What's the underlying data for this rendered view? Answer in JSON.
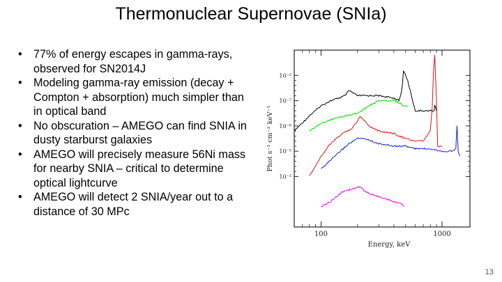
{
  "slide": {
    "title": "Thermonuclear Supernovae (SNIa)",
    "page_number": "13",
    "bullets": [
      "77% of energy escapes in gamma-rays, observed for SN2014J",
      "Modeling gamma-ray emission (decay + Compton + absorption) much simpler than in optical band",
      "No obscuration – AMEGO can find SNIA in dusty starburst galaxies",
      "AMEGO will precisely measure 56Ni mass for nearby SNIA – critical to determine optical lightcurve",
      "AMEGO will detect 2 SNIA/year out to a distance of 30 MPc"
    ]
  },
  "chart_data": {
    "type": "line",
    "xlabel": "Energy, keV",
    "ylabel": "Phot s⁻¹ cm⁻² keV⁻¹",
    "xscale": "log",
    "yscale": "log",
    "xlim": [
      60,
      1700
    ],
    "ylim": [
      0.0008,
      0.0015
    ],
    "x_ticks": [
      {
        "value": 100,
        "label": "100"
      },
      {
        "value": 1000,
        "label": "1000"
      }
    ],
    "y_ticks": [
      {
        "value": 0.001,
        "label": "10⁻³"
      },
      {
        "value": 0.0011,
        "label": "10⁻⁵"
      },
      {
        "value": 0.0012,
        "label": "10⁻⁶"
      },
      {
        "value": 0.0013,
        "label": "10⁻⁷"
      },
      {
        "value": 0.0014,
        "label": "10⁻⁵"
      }
    ],
    "series": [
      {
        "color": "#000000",
        "x": [
          60,
          80,
          100,
          120,
          140,
          158,
          170,
          200,
          250,
          300,
          400,
          440,
          455,
          470,
          480,
          520,
          600,
          700,
          800,
          860,
          870,
          880,
          900
        ],
        "y": [
          0.00118,
          0.00124,
          0.00128,
          0.0013,
          0.00131,
          0.00132,
          0.00134,
          0.00132,
          0.00132,
          0.00132,
          0.00131,
          0.0013,
          0.00132,
          0.00136,
          0.00142,
          0.00138,
          0.00126,
          0.00126,
          0.00126,
          0.00126,
          0.00128,
          0.00128,
          0.00126
        ]
      },
      {
        "color": "#00dd00",
        "x": [
          80,
          100,
          130,
          160,
          200,
          250,
          300,
          350,
          400,
          450,
          480,
          520
        ],
        "y": [
          0.00118,
          0.00121,
          0.00123,
          0.00124,
          0.00125,
          0.00128,
          0.0013,
          0.0013,
          0.0013,
          0.00129,
          0.00128,
          0.00128
        ]
      },
      {
        "color": "#dd1111",
        "x": [
          80,
          100,
          120,
          150,
          180,
          200,
          210,
          250,
          300,
          400,
          500,
          600,
          700,
          800,
          830,
          850,
          870,
          900,
          920,
          1000
        ],
        "y": [
          0.001,
          0.00108,
          0.00113,
          0.00117,
          0.00119,
          0.00122,
          0.00124,
          0.0012,
          0.00118,
          0.00117,
          0.00115,
          0.00114,
          0.00114,
          0.00118,
          0.00128,
          0.00142,
          0.00148,
          0.0013,
          0.00112,
          0.00112
        ]
      },
      {
        "color": "#1122cc",
        "x": [
          100,
          130,
          170,
          200,
          230,
          300,
          400,
          500,
          600,
          800,
          1000,
          1200,
          1300,
          1330,
          1360,
          1400
        ],
        "y": [
          0.00103,
          0.00108,
          0.00113,
          0.00115,
          0.00115,
          0.00113,
          0.00112,
          0.00112,
          0.00111,
          0.00111,
          0.0011,
          0.0011,
          0.00111,
          0.0012,
          0.0011,
          0.00108
        ]
      },
      {
        "color": "#ee00ee",
        "x": [
          100,
          120,
          150,
          180,
          210,
          230,
          260,
          300,
          400,
          470,
          480
        ],
        "y": [
          0.00088,
          0.0009,
          0.00094,
          0.00095,
          0.00096,
          0.00094,
          0.00093,
          0.00092,
          0.0009,
          0.00089,
          0.00088
        ]
      }
    ]
  }
}
